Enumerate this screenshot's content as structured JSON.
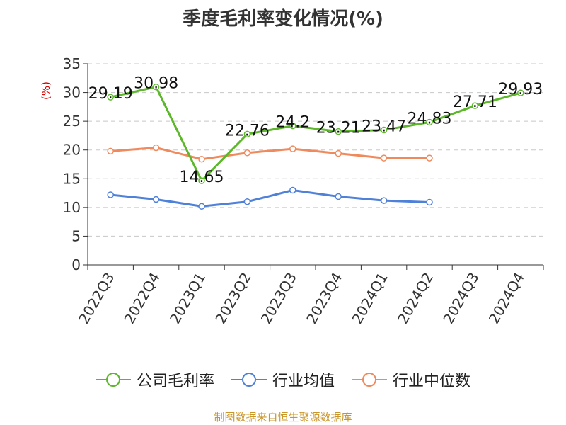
{
  "chart_data": {
    "type": "line",
    "title": "季度毛利率变化情况(%)",
    "ylabel": "(%)",
    "ylim": [
      0,
      35
    ],
    "yticks": [
      0,
      5,
      10,
      15,
      20,
      25,
      30,
      35
    ],
    "grid": true,
    "legend_position": "bottom",
    "categories": [
      "2022Q3",
      "2022Q4",
      "2023Q1",
      "2023Q2",
      "2023Q3",
      "2023Q4",
      "2024Q1",
      "2024Q2",
      "2024Q3",
      "2024Q4"
    ],
    "series": [
      {
        "name": "公司毛利率",
        "color": "#5cb82a",
        "values": [
          29.19,
          30.98,
          14.65,
          22.76,
          24.2,
          23.21,
          23.47,
          24.83,
          27.71,
          29.93
        ],
        "labels": [
          "29.19",
          "30.98",
          "14.65",
          "22.76",
          "24.2",
          "23.21",
          "23.47",
          "24.83",
          "27.71",
          "29.93"
        ]
      },
      {
        "name": "行业均值",
        "color": "#4f81d9",
        "values": [
          12.2,
          11.4,
          10.2,
          11.0,
          13.0,
          11.9,
          11.2,
          10.9,
          null,
          null
        ]
      },
      {
        "name": "行业中位数",
        "color": "#f08a5d",
        "values": [
          19.8,
          20.4,
          18.4,
          19.5,
          20.2,
          19.4,
          18.6,
          18.6,
          null,
          null
        ]
      }
    ]
  },
  "source": {
    "text": "制图数据来自恒生聚源数据库",
    "color": "#c9962b"
  }
}
